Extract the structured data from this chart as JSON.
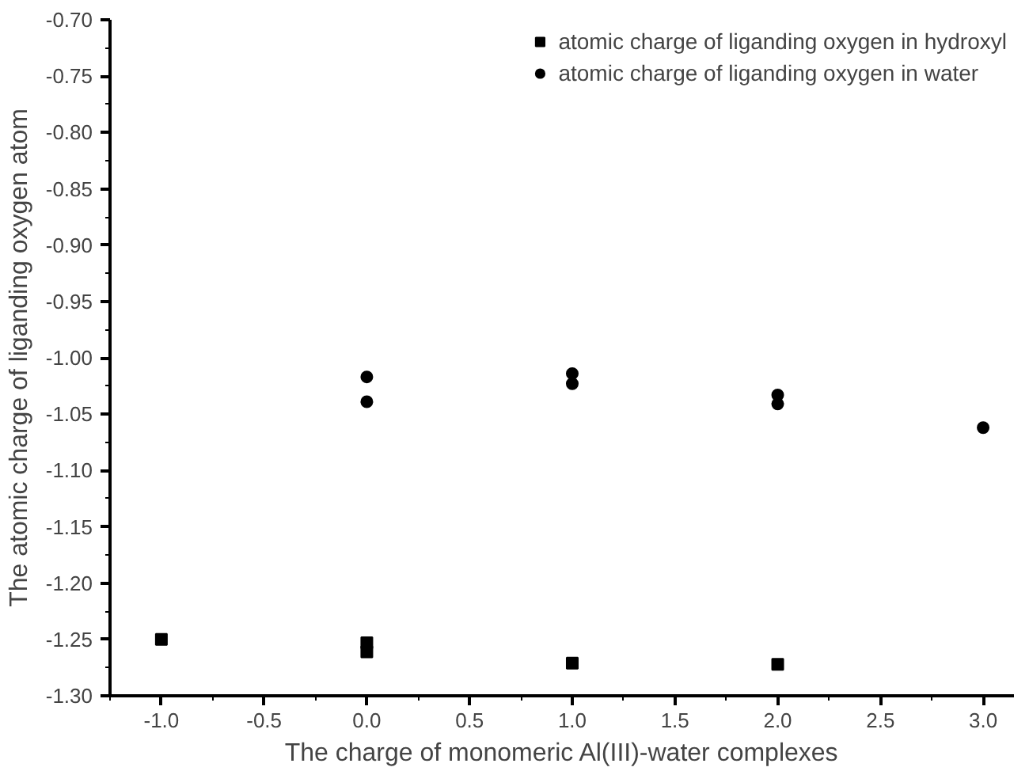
{
  "chart_data": {
    "type": "scatter",
    "xlabel": "The charge of monomeric Al(III)-water complexes",
    "ylabel": "The atomic charge of liganding oxygen atom",
    "series": [
      {
        "name": "atomic charge of liganding oxygen in hydroxyl",
        "color": "#000000",
        "marker": "square",
        "x": [
          -1,
          0,
          0,
          1,
          2
        ],
        "values": [
          -1.25,
          -1.253,
          -1.261,
          -1.271,
          -1.272
        ]
      },
      {
        "name": "atomic charge of liganding oxygen in water",
        "color": "#000000",
        "marker": "circle",
        "x": [
          0,
          0,
          1,
          1,
          2,
          2,
          3
        ],
        "values": [
          -1.017,
          -1.039,
          -1.014,
          -1.023,
          -1.033,
          -1.041,
          -1.062
        ]
      }
    ],
    "xlim": [
      -1.25,
      3.15
    ],
    "ylim": [
      -1.3,
      -0.7
    ],
    "xticks": [
      {
        "value": -1,
        "label": "-1.0"
      },
      {
        "value": -0.5,
        "label": "-0.5"
      },
      {
        "value": 0,
        "label": "0.0"
      },
      {
        "value": 0.5,
        "label": "0.5"
      },
      {
        "value": 1,
        "label": "1.0"
      },
      {
        "value": 1.5,
        "label": "1.5"
      },
      {
        "value": 2,
        "label": "2.0"
      },
      {
        "value": 2.5,
        "label": "2.5"
      },
      {
        "value": 3,
        "label": "3.0"
      }
    ],
    "yticks": [
      {
        "value": -1.3,
        "label": "-1.30"
      },
      {
        "value": -1.25,
        "label": "-1.25"
      },
      {
        "value": -1.2,
        "label": "-1.20"
      },
      {
        "value": -1.15,
        "label": "-1.15"
      },
      {
        "value": -1.1,
        "label": "-1.10"
      },
      {
        "value": -1.05,
        "label": "-1.05"
      },
      {
        "value": -1.0,
        "label": "-1.00"
      },
      {
        "value": -0.95,
        "label": "-0.95"
      },
      {
        "value": -0.9,
        "label": "-0.90"
      },
      {
        "value": -0.85,
        "label": "-0.85"
      },
      {
        "value": -0.8,
        "label": "-0.80"
      },
      {
        "value": -0.75,
        "label": "-0.75"
      },
      {
        "value": -0.7,
        "label": "-0.70"
      }
    ],
    "grid": false,
    "legend": "top right"
  }
}
